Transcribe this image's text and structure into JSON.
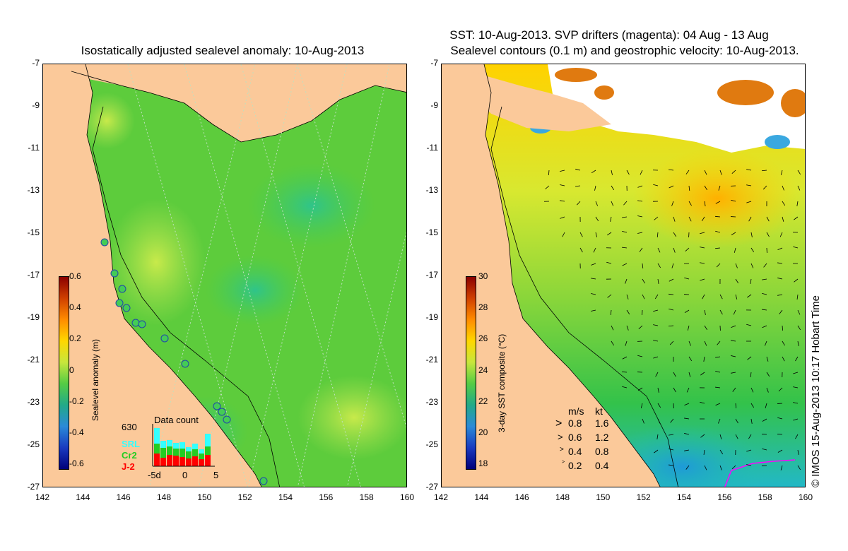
{
  "left_panel": {
    "title": "Isostatically adjusted sealevel anomaly: 10-Aug-2013",
    "colorbar": {
      "label": "Sealevel anomaly (m)",
      "ticks": [
        "0.6",
        "0.4",
        "0.2",
        "0",
        "-0.2",
        "-0.4",
        "-0.6"
      ],
      "range": [
        -0.6,
        0.6
      ]
    },
    "data_count": {
      "title": "Data count",
      "max_label": "630",
      "satellites": [
        {
          "name": "SRL",
          "color": "#33ffff"
        },
        {
          "name": "Cr2",
          "color": "#22cc22"
        },
        {
          "name": "J-2",
          "color": "#ff0000"
        }
      ],
      "x_ticks": [
        "-5d",
        "0",
        "5"
      ]
    }
  },
  "right_panel": {
    "title_line1": "SST: 10-Aug-2013. SVP drifters (magenta): 04 Aug - 13 Aug",
    "title_line2": "Sealevel contours (0.1 m) and geostrophic velocity: 10-Aug-2013.",
    "colorbar": {
      "label": "3-day SST composite (°C)",
      "ticks": [
        "30",
        "28",
        "26",
        "24",
        "22",
        "20",
        "18"
      ],
      "range": [
        17,
        30.5
      ]
    },
    "velocity_legend": {
      "header_ms": "m/s",
      "header_kt": "kt",
      "rows": [
        {
          "ms": "0.8",
          "kt": "1.6"
        },
        {
          "ms": "0.6",
          "kt": "1.2"
        },
        {
          "ms": "0.4",
          "kt": "0.8"
        },
        {
          "ms": "0.2",
          "kt": "0.4"
        }
      ]
    }
  },
  "axes": {
    "y_ticks": [
      "-7",
      "-9",
      "-11",
      "-13",
      "-15",
      "-17",
      "-19",
      "-21",
      "-23",
      "-25",
      "-27"
    ],
    "x_ticks": [
      "142",
      "144",
      "146",
      "148",
      "150",
      "152",
      "154",
      "156",
      "158",
      "160"
    ],
    "lon_range": [
      142,
      160
    ],
    "lat_range": [
      -27,
      -7
    ]
  },
  "credit": "© IMOS 15-Aug-2013 10:17 Hobart Time",
  "colors": {
    "land": "#fbc99a",
    "sea_green": "#33cc33",
    "sea_light": "#a8e84a",
    "cloud": "#ffffff",
    "drifter": "#ff00ff"
  }
}
